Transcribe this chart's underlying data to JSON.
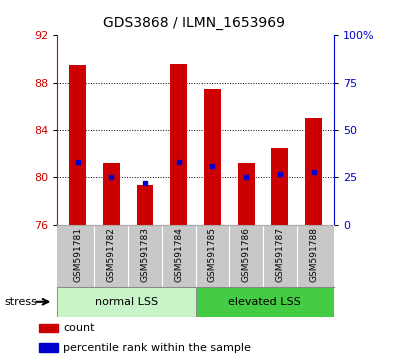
{
  "title": "GDS3868 / ILMN_1653969",
  "samples": [
    "GSM591781",
    "GSM591782",
    "GSM591783",
    "GSM591784",
    "GSM591785",
    "GSM591786",
    "GSM591787",
    "GSM591788"
  ],
  "bar_tops": [
    89.5,
    81.2,
    79.4,
    89.6,
    87.5,
    81.2,
    82.5,
    85.0
  ],
  "bar_base": 76,
  "blue_vals": [
    81.3,
    80.0,
    79.55,
    81.3,
    81.0,
    80.0,
    80.3,
    80.5
  ],
  "ylim": [
    76,
    92
  ],
  "yticks_left": [
    76,
    80,
    84,
    88,
    92
  ],
  "yticks_right_positions": [
    76,
    80,
    84,
    88,
    92
  ],
  "right_axis_labels": [
    "0",
    "25",
    "50",
    "75",
    "100%"
  ],
  "groups": [
    {
      "label": "normal LSS",
      "start": 0,
      "end": 4,
      "color": "#c8f5c8"
    },
    {
      "label": "elevated LSS",
      "start": 4,
      "end": 8,
      "color": "#44cc44"
    }
  ],
  "bar_color": "#cc0000",
  "blue_color": "#0000cc",
  "left_axis_color": "#cc0000",
  "right_axis_color": "#0000cc",
  "tick_label_bg": "#c8c8c8"
}
